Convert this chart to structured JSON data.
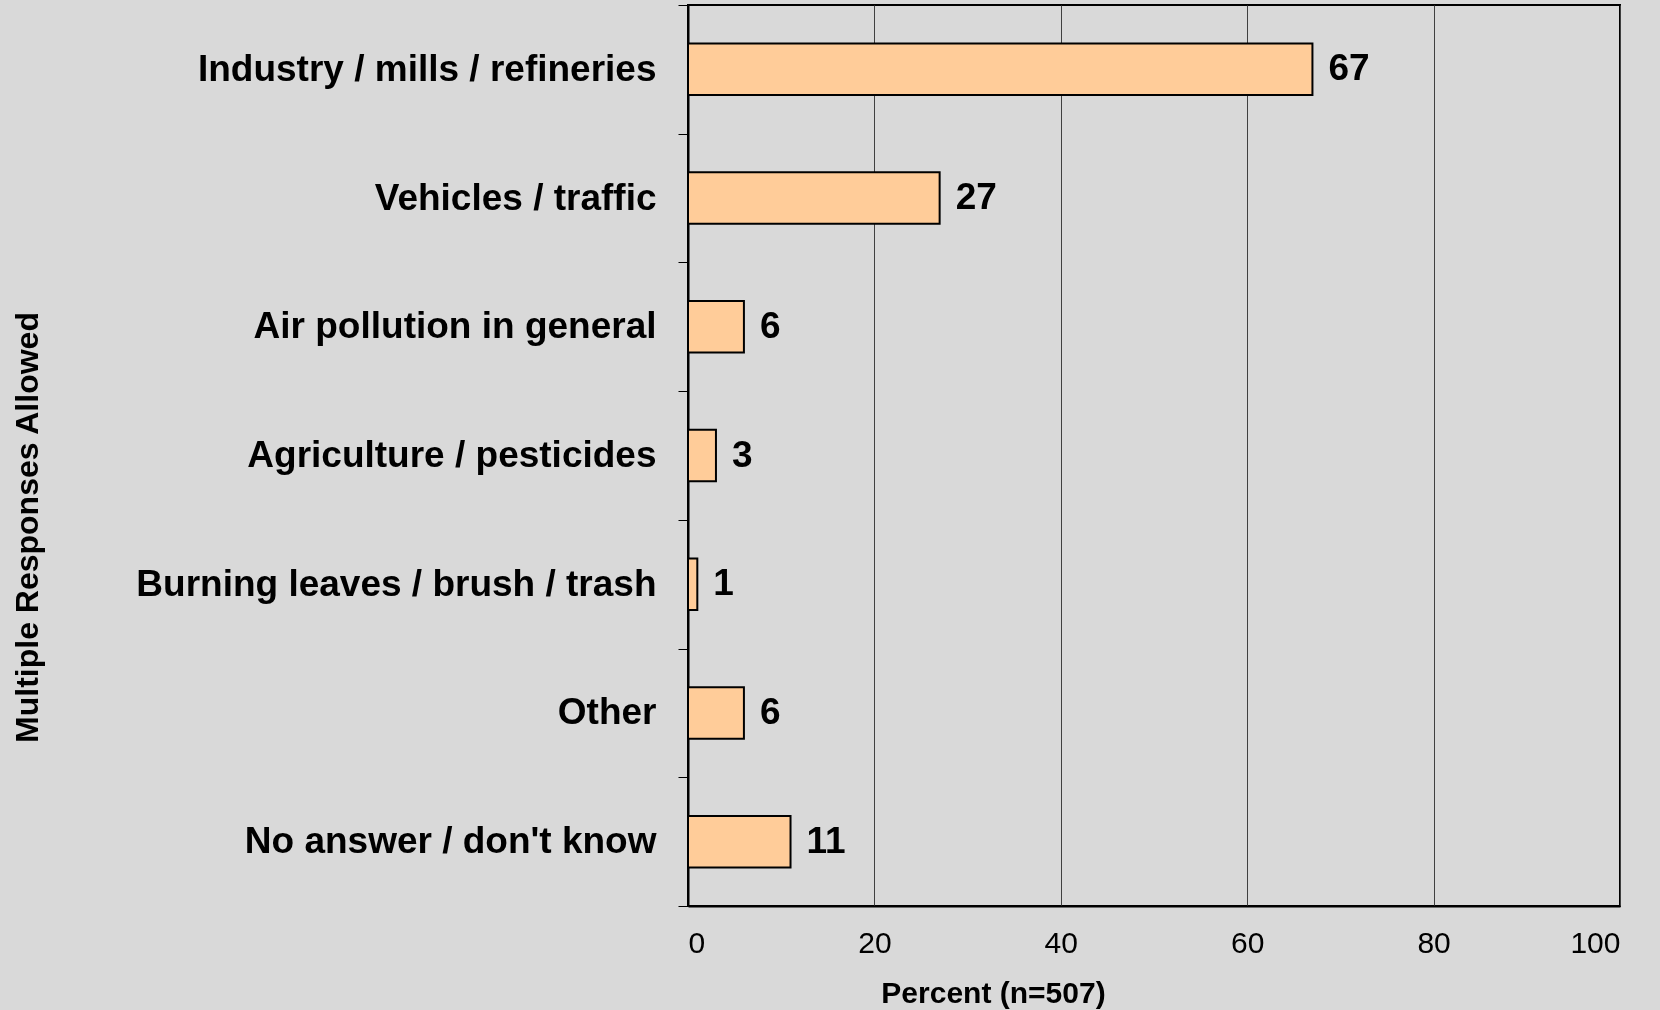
{
  "chart_data": {
    "type": "bar",
    "orientation": "horizontal",
    "xlabel": "Percent (n=507)",
    "ylabel": "Multiple Responses Allowed",
    "categories": [
      "Industry / mills / refineries",
      "Vehicles / traffic",
      "Air pollution in general",
      "Agriculture / pesticides",
      "Burning leaves / brush / trash",
      "Other",
      "No answer / don't know"
    ],
    "values": [
      67,
      27,
      6,
      3,
      1,
      6,
      11
    ],
    "color": "#ffcc99",
    "xlim": [
      0,
      100
    ],
    "xticks": [
      0,
      20,
      40,
      60,
      80,
      100
    ],
    "grid": "x",
    "data_labels": true
  }
}
